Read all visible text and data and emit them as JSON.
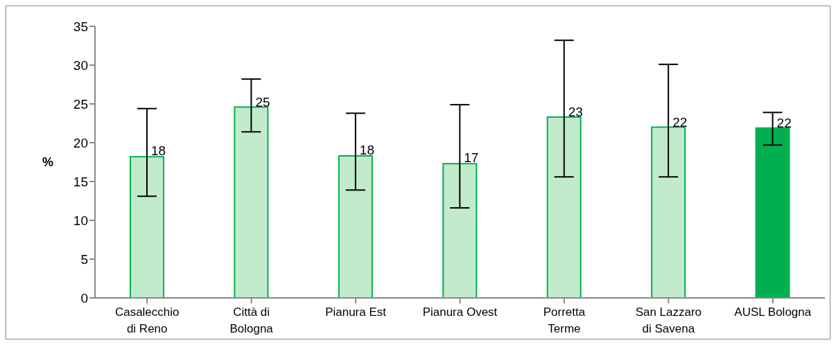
{
  "chart_data": {
    "type": "bar",
    "ylabel": "%",
    "categories": [
      "Casalecchio di Reno",
      "Città di Bologna",
      "Pianura Est",
      "Pianura Ovest",
      "Porretta Terme",
      "San Lazzaro di Savena",
      "AUSL Bologna"
    ],
    "values": [
      18.2,
      24.6,
      18.3,
      17.3,
      23.3,
      22.0,
      21.9
    ],
    "errors": [
      [
        13.1,
        24.4
      ],
      [
        21.4,
        28.2
      ],
      [
        13.9,
        23.8
      ],
      [
        11.6,
        24.9
      ],
      [
        15.6,
        33.2
      ],
      [
        15.6,
        30.1
      ],
      [
        19.7,
        23.9
      ]
    ],
    "value_labels": [
      "18",
      "25",
      "18",
      "17",
      "23",
      "22",
      "22"
    ],
    "colors": [
      "#c2ebcb",
      "#c2ebcb",
      "#c2ebcb",
      "#c2ebcb",
      "#c2ebcb",
      "#c2ebcb",
      "#00b050"
    ],
    "ylim": [
      0,
      35
    ],
    "yticks": [
      0,
      5,
      10,
      15,
      20,
      25,
      30,
      35
    ],
    "grid": false,
    "legend": false
  }
}
